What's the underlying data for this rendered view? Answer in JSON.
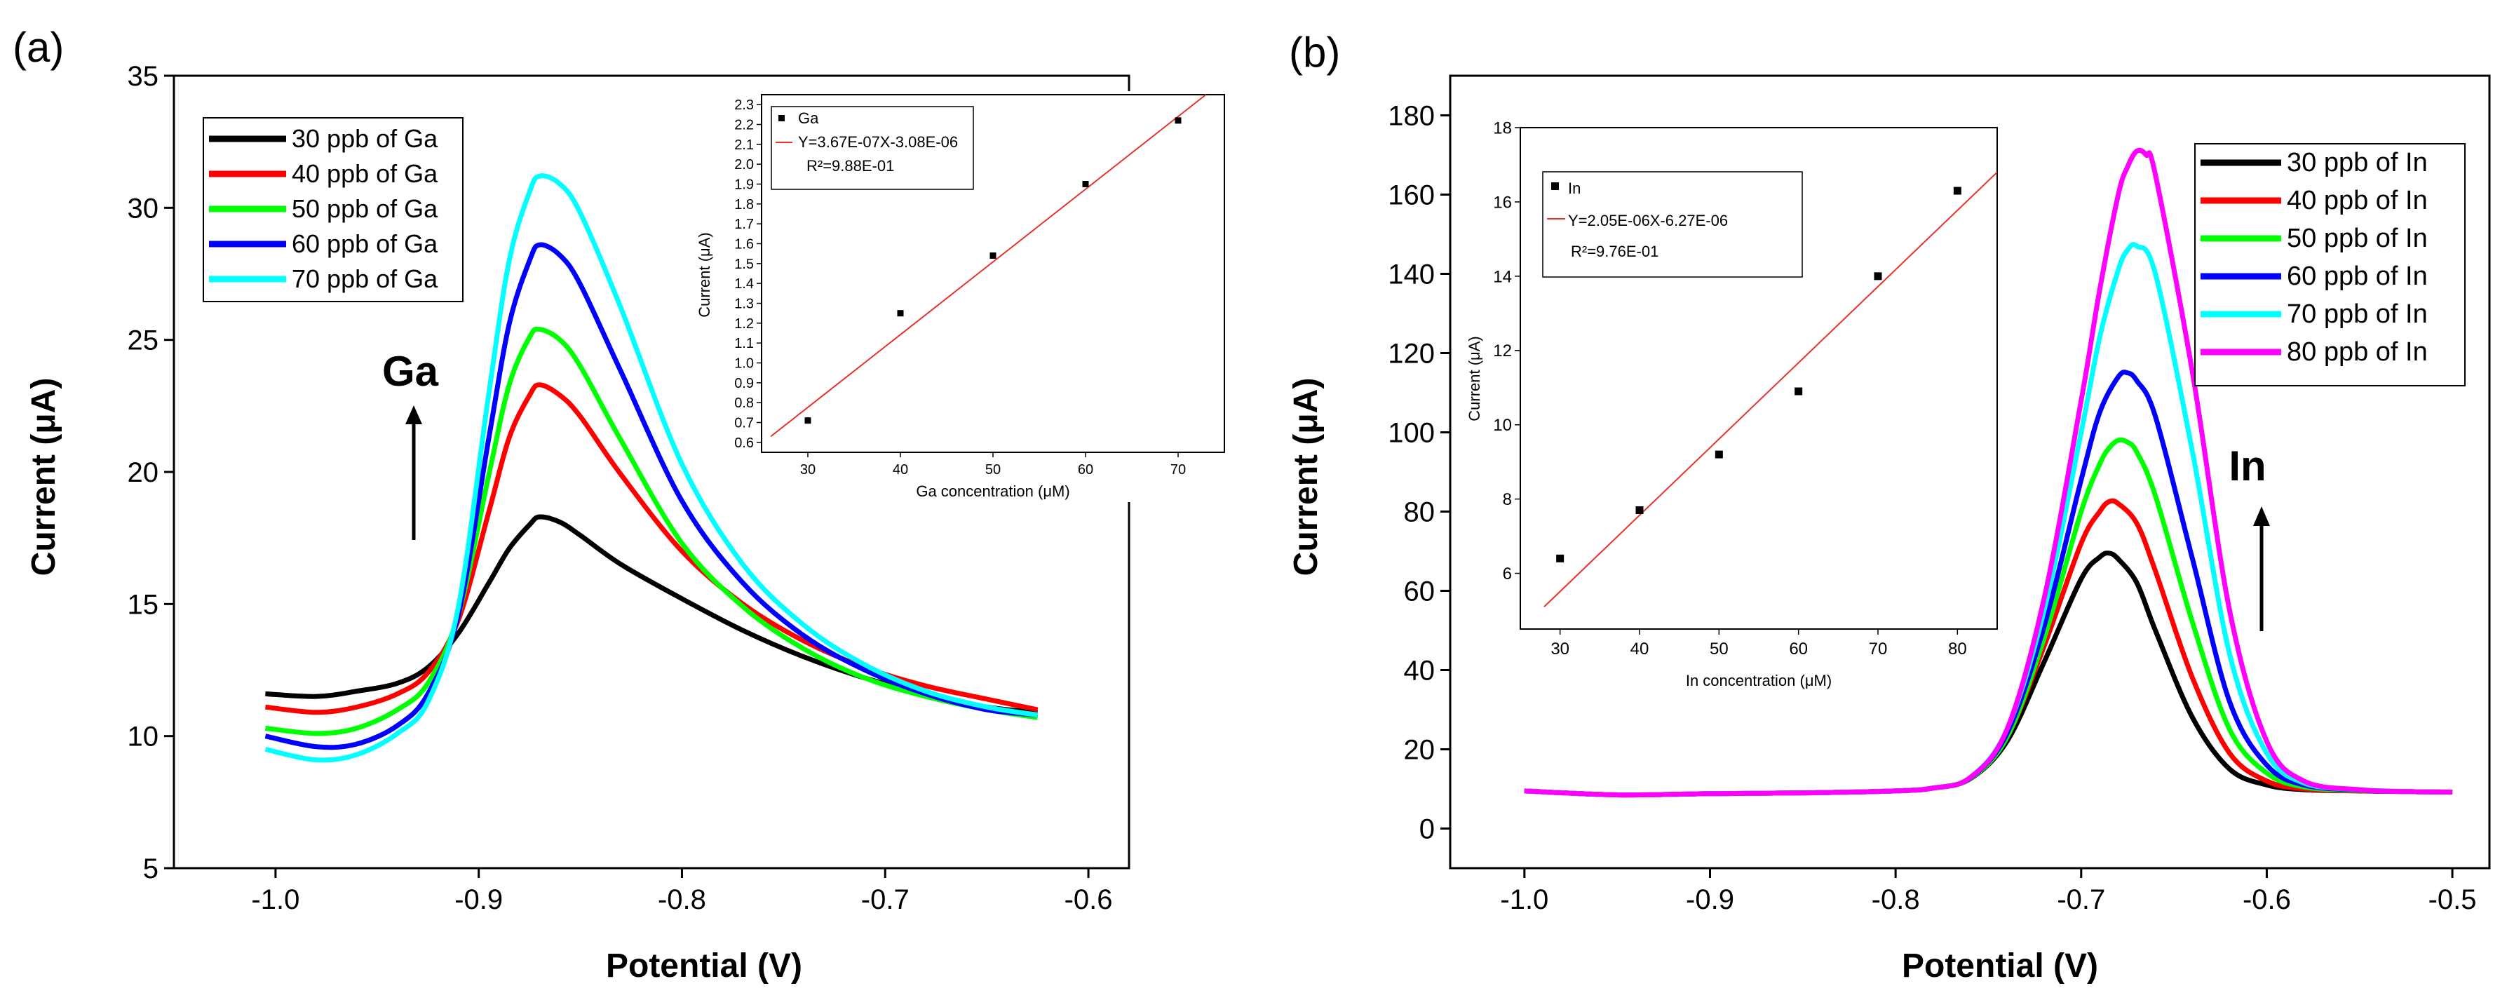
{
  "panels": {
    "a": {
      "label": "(a)",
      "annotation": "Ga",
      "legend": [
        "30 ppb of Ga",
        "40 ppb of Ga",
        "50 ppb of Ga",
        "60 ppb of Ga",
        "70 ppb of Ga"
      ],
      "inset": {
        "legend_marker": "Ga",
        "fit_equation": "Y=3.67E-07X-3.08E-06",
        "r_squared": "R²=9.88E-01"
      }
    },
    "b": {
      "label": "(b)",
      "annotation": "In",
      "legend": [
        "30 ppb of In",
        "40 ppb of In",
        "50 ppb of In",
        "60 ppb of In",
        "70 ppb of In",
        "80 ppb of In"
      ],
      "inset": {
        "legend_marker": "In",
        "fit_equation": "Y=2.05E-06X-6.27E-06",
        "r_squared": "R²=9.76E-01"
      }
    }
  },
  "colors": {
    "series": [
      "#000000",
      "#ff0000",
      "#00ff00",
      "#0000ff",
      "#00ffff",
      "#ff00ff"
    ],
    "fit_line": "#e8322b",
    "axis": "#000000"
  },
  "chart_data": [
    {
      "id": "a",
      "type": "line",
      "xlabel": "Potential (V)",
      "ylabel": "Current (μA)",
      "xlim": [
        -1.05,
        -0.58
      ],
      "ylim": [
        5,
        35
      ],
      "xticks": [
        -1.0,
        -0.9,
        -0.8,
        -0.7,
        -0.6
      ],
      "xtick_labels": [
        "-1.0",
        "-0.9",
        "-0.8",
        "-0.7",
        "-0.6"
      ],
      "yticks": [
        5,
        10,
        15,
        20,
        25,
        30,
        35
      ],
      "ytick_labels": [
        "5",
        "10",
        "15",
        "20",
        "25",
        "30",
        "35"
      ],
      "legend_position": "top-left",
      "series": [
        {
          "name": "30 ppb of Ga",
          "x": [
            -1.005,
            -0.98,
            -0.96,
            -0.94,
            -0.925,
            -0.91,
            -0.895,
            -0.885,
            -0.875,
            -0.87,
            -0.86,
            -0.85,
            -0.83,
            -0.8,
            -0.77,
            -0.74,
            -0.71,
            -0.68,
            -0.65,
            -0.625
          ],
          "y": [
            11.6,
            11.5,
            11.7,
            12.0,
            12.6,
            13.9,
            15.8,
            17.1,
            18.0,
            18.3,
            18.1,
            17.6,
            16.5,
            15.2,
            14.0,
            13.0,
            12.2,
            11.6,
            11.1,
            10.9
          ]
        },
        {
          "name": "40 ppb of Ga",
          "x": [
            -1.005,
            -0.98,
            -0.96,
            -0.94,
            -0.925,
            -0.91,
            -0.895,
            -0.885,
            -0.875,
            -0.87,
            -0.86,
            -0.85,
            -0.83,
            -0.8,
            -0.77,
            -0.74,
            -0.71,
            -0.68,
            -0.65,
            -0.625
          ],
          "y": [
            11.1,
            10.9,
            11.1,
            11.6,
            12.4,
            14.4,
            18.5,
            21.3,
            22.9,
            23.3,
            22.9,
            22.1,
            19.9,
            17.0,
            15.0,
            13.6,
            12.6,
            11.9,
            11.4,
            11.0
          ]
        },
        {
          "name": "50 ppb of Ga",
          "x": [
            -1.005,
            -0.98,
            -0.96,
            -0.94,
            -0.925,
            -0.91,
            -0.895,
            -0.885,
            -0.875,
            -0.87,
            -0.86,
            -0.85,
            -0.83,
            -0.8,
            -0.77,
            -0.74,
            -0.71,
            -0.68,
            -0.65,
            -0.625
          ],
          "y": [
            10.3,
            10.1,
            10.3,
            11.0,
            12.0,
            14.6,
            19.9,
            23.3,
            25.1,
            25.4,
            25.0,
            24.0,
            21.2,
            17.3,
            14.9,
            13.3,
            12.2,
            11.5,
            11.0,
            10.7
          ]
        },
        {
          "name": "60 ppb of Ga",
          "x": [
            -1.005,
            -0.98,
            -0.96,
            -0.94,
            -0.925,
            -0.91,
            -0.895,
            -0.885,
            -0.875,
            -0.87,
            -0.86,
            -0.85,
            -0.83,
            -0.8,
            -0.77,
            -0.74,
            -0.71,
            -0.68,
            -0.65,
            -0.625
          ],
          "y": [
            10.0,
            9.6,
            9.7,
            10.4,
            11.6,
            14.6,
            21.3,
            25.6,
            28.0,
            28.6,
            28.2,
            27.1,
            23.8,
            18.9,
            15.8,
            13.8,
            12.5,
            11.6,
            11.0,
            10.8
          ]
        },
        {
          "name": "70 ppb of Ga",
          "x": [
            -1.005,
            -0.98,
            -0.96,
            -0.94,
            -0.925,
            -0.91,
            -0.895,
            -0.885,
            -0.875,
            -0.87,
            -0.86,
            -0.85,
            -0.83,
            -0.8,
            -0.77,
            -0.74,
            -0.71,
            -0.68,
            -0.65,
            -0.625
          ],
          "y": [
            9.5,
            9.1,
            9.3,
            10.1,
            11.3,
            14.9,
            23.0,
            28.0,
            30.6,
            31.2,
            30.9,
            29.8,
            26.2,
            20.3,
            16.5,
            14.2,
            12.7,
            11.7,
            11.1,
            10.8
          ]
        }
      ],
      "inset": {
        "type": "scatter",
        "xlabel": "Ga concentration (μM)",
        "ylabel": "Current (μA)",
        "xlim": [
          25,
          75
        ],
        "ylim": [
          0.55,
          2.35
        ],
        "xticks": [
          30,
          40,
          50,
          60,
          70
        ],
        "xtick_labels": [
          "30",
          "40",
          "50",
          "60",
          "70"
        ],
        "yticks": [
          0.6,
          0.7,
          0.8,
          0.9,
          1.0,
          1.1,
          1.2,
          1.3,
          1.4,
          1.5,
          1.6,
          1.7,
          1.8,
          1.9,
          2.0,
          2.1,
          2.2,
          2.3
        ],
        "ytick_labels": [
          "0.6",
          "0.7",
          "0.8",
          "0.9",
          "1.0",
          "1.1",
          "1.2",
          "1.3",
          "1.4",
          "1.5",
          "1.6",
          "1.7",
          "1.8",
          "1.9",
          "2.0",
          "2.1",
          "2.2",
          "2.3"
        ],
        "points": {
          "x": [
            30,
            40,
            50,
            60,
            70
          ],
          "y": [
            0.71,
            1.25,
            1.54,
            1.9,
            2.22
          ]
        },
        "fit_line": {
          "x": [
            26,
            73
          ],
          "y": [
            0.63,
            2.35
          ]
        }
      }
    },
    {
      "id": "b",
      "type": "line",
      "xlabel": "Potential (V)",
      "ylabel": "Current (μA)",
      "xlim": [
        -1.04,
        -0.48
      ],
      "ylim": [
        -10,
        190
      ],
      "xticks": [
        -1.0,
        -0.9,
        -0.8,
        -0.7,
        -0.6,
        -0.5
      ],
      "xtick_labels": [
        "-1.0",
        "-0.9",
        "-0.8",
        "-0.7",
        "-0.6",
        "-0.5"
      ],
      "yticks": [
        0,
        20,
        40,
        60,
        80,
        100,
        120,
        140,
        160,
        180
      ],
      "ytick_labels": [
        "0",
        "20",
        "40",
        "60",
        "80",
        "100",
        "120",
        "140",
        "160",
        "180"
      ],
      "legend_position": "top-right",
      "series": [
        {
          "name": "30 ppb of In",
          "x": [
            -1.0,
            -0.95,
            -0.9,
            -0.85,
            -0.8,
            -0.78,
            -0.76,
            -0.74,
            -0.72,
            -0.7,
            -0.69,
            -0.685,
            -0.68,
            -0.67,
            -0.66,
            -0.64,
            -0.62,
            -0.6,
            -0.58,
            -0.55,
            -0.52,
            -0.5
          ],
          "y": [
            9.5,
            8.5,
            8.8,
            9.0,
            9.5,
            10.2,
            12.5,
            22,
            42,
            63,
            68.5,
            69.5,
            68,
            62,
            50,
            28,
            15,
            11,
            9.8,
            9.5,
            9.3,
            9.2
          ]
        },
        {
          "name": "40 ppb of In",
          "x": [
            -1.0,
            -0.95,
            -0.9,
            -0.85,
            -0.8,
            -0.78,
            -0.76,
            -0.74,
            -0.72,
            -0.7,
            -0.69,
            -0.685,
            -0.68,
            -0.67,
            -0.66,
            -0.64,
            -0.62,
            -0.6,
            -0.58,
            -0.55,
            -0.52,
            -0.5
          ],
          "y": [
            9.5,
            8.5,
            8.8,
            9.0,
            9.5,
            10.2,
            12.6,
            23,
            46,
            72,
            80,
            82.5,
            82,
            77,
            65,
            38,
            19,
            12,
            10,
            9.5,
            9.3,
            9.2
          ]
        },
        {
          "name": "50 ppb of In",
          "x": [
            -1.0,
            -0.95,
            -0.9,
            -0.85,
            -0.8,
            -0.78,
            -0.76,
            -0.74,
            -0.72,
            -0.7,
            -0.69,
            -0.685,
            -0.68,
            -0.675,
            -0.67,
            -0.66,
            -0.64,
            -0.62,
            -0.6,
            -0.58,
            -0.55,
            -0.52,
            -0.5
          ],
          "y": [
            9.5,
            8.5,
            8.8,
            9.0,
            9.5,
            10.2,
            12.6,
            23,
            48,
            80,
            92,
            96,
            98,
            97.5,
            95,
            84,
            52,
            25,
            14,
            10.5,
            9.6,
            9.3,
            9.2
          ]
        },
        {
          "name": "60 ppb of In",
          "x": [
            -1.0,
            -0.95,
            -0.9,
            -0.85,
            -0.8,
            -0.78,
            -0.76,
            -0.74,
            -0.72,
            -0.7,
            -0.69,
            -0.68,
            -0.675,
            -0.67,
            -0.66,
            -0.64,
            -0.62,
            -0.6,
            -0.58,
            -0.55,
            -0.52,
            -0.5
          ],
          "y": [
            9.5,
            8.5,
            8.8,
            9.0,
            9.5,
            10.2,
            12.7,
            24,
            51,
            88,
            105,
            114,
            115,
            113,
            104,
            68,
            32,
            16,
            11,
            9.7,
            9.3,
            9.2
          ]
        },
        {
          "name": "70 ppb of In",
          "x": [
            -1.0,
            -0.95,
            -0.9,
            -0.85,
            -0.8,
            -0.78,
            -0.76,
            -0.74,
            -0.72,
            -0.7,
            -0.69,
            -0.68,
            -0.675,
            -0.67,
            -0.66,
            -0.64,
            -0.62,
            -0.6,
            -0.58,
            -0.55,
            -0.52,
            -0.5
          ],
          "y": [
            9.5,
            8.5,
            8.8,
            9.0,
            9.5,
            10.2,
            12.8,
            25,
            55,
            100,
            124,
            141,
            146,
            147,
            140,
            95,
            44,
            19,
            11.5,
            9.8,
            9.3,
            9.2
          ]
        },
        {
          "name": "80 ppb of In",
          "x": [
            -1.0,
            -0.95,
            -0.9,
            -0.85,
            -0.8,
            -0.78,
            -0.76,
            -0.74,
            -0.72,
            -0.7,
            -0.69,
            -0.68,
            -0.675,
            -0.67,
            -0.665,
            -0.66,
            -0.64,
            -0.62,
            -0.6,
            -0.58,
            -0.55,
            -0.52,
            -0.5
          ],
          "y": [
            9.5,
            8.5,
            8.8,
            9.0,
            9.5,
            10.2,
            12.8,
            25,
            58,
            108,
            136,
            160,
            167,
            171,
            170,
            165,
            115,
            55,
            22,
            12,
            9.8,
            9.3,
            9.2
          ]
        }
      ],
      "inset": {
        "type": "scatter",
        "xlabel": "In concentration (μM)",
        "ylabel": "Current (μA)",
        "xlim": [
          25,
          85
        ],
        "ylim": [
          4.5,
          18
        ],
        "xticks": [
          30,
          40,
          50,
          60,
          70,
          80
        ],
        "xtick_labels": [
          "30",
          "40",
          "50",
          "60",
          "70",
          "80"
        ],
        "yticks": [
          6,
          8,
          10,
          12,
          14,
          16,
          18
        ],
        "ytick_labels": [
          "6",
          "8",
          "10",
          "12",
          "14",
          "16",
          "18"
        ],
        "points": {
          "x": [
            30,
            40,
            50,
            60,
            70,
            80
          ],
          "y": [
            6.4,
            7.7,
            9.2,
            10.9,
            14.0,
            16.3
          ]
        },
        "fit_line": {
          "x": [
            28,
            85
          ],
          "y": [
            5.1,
            16.8
          ]
        }
      }
    }
  ]
}
